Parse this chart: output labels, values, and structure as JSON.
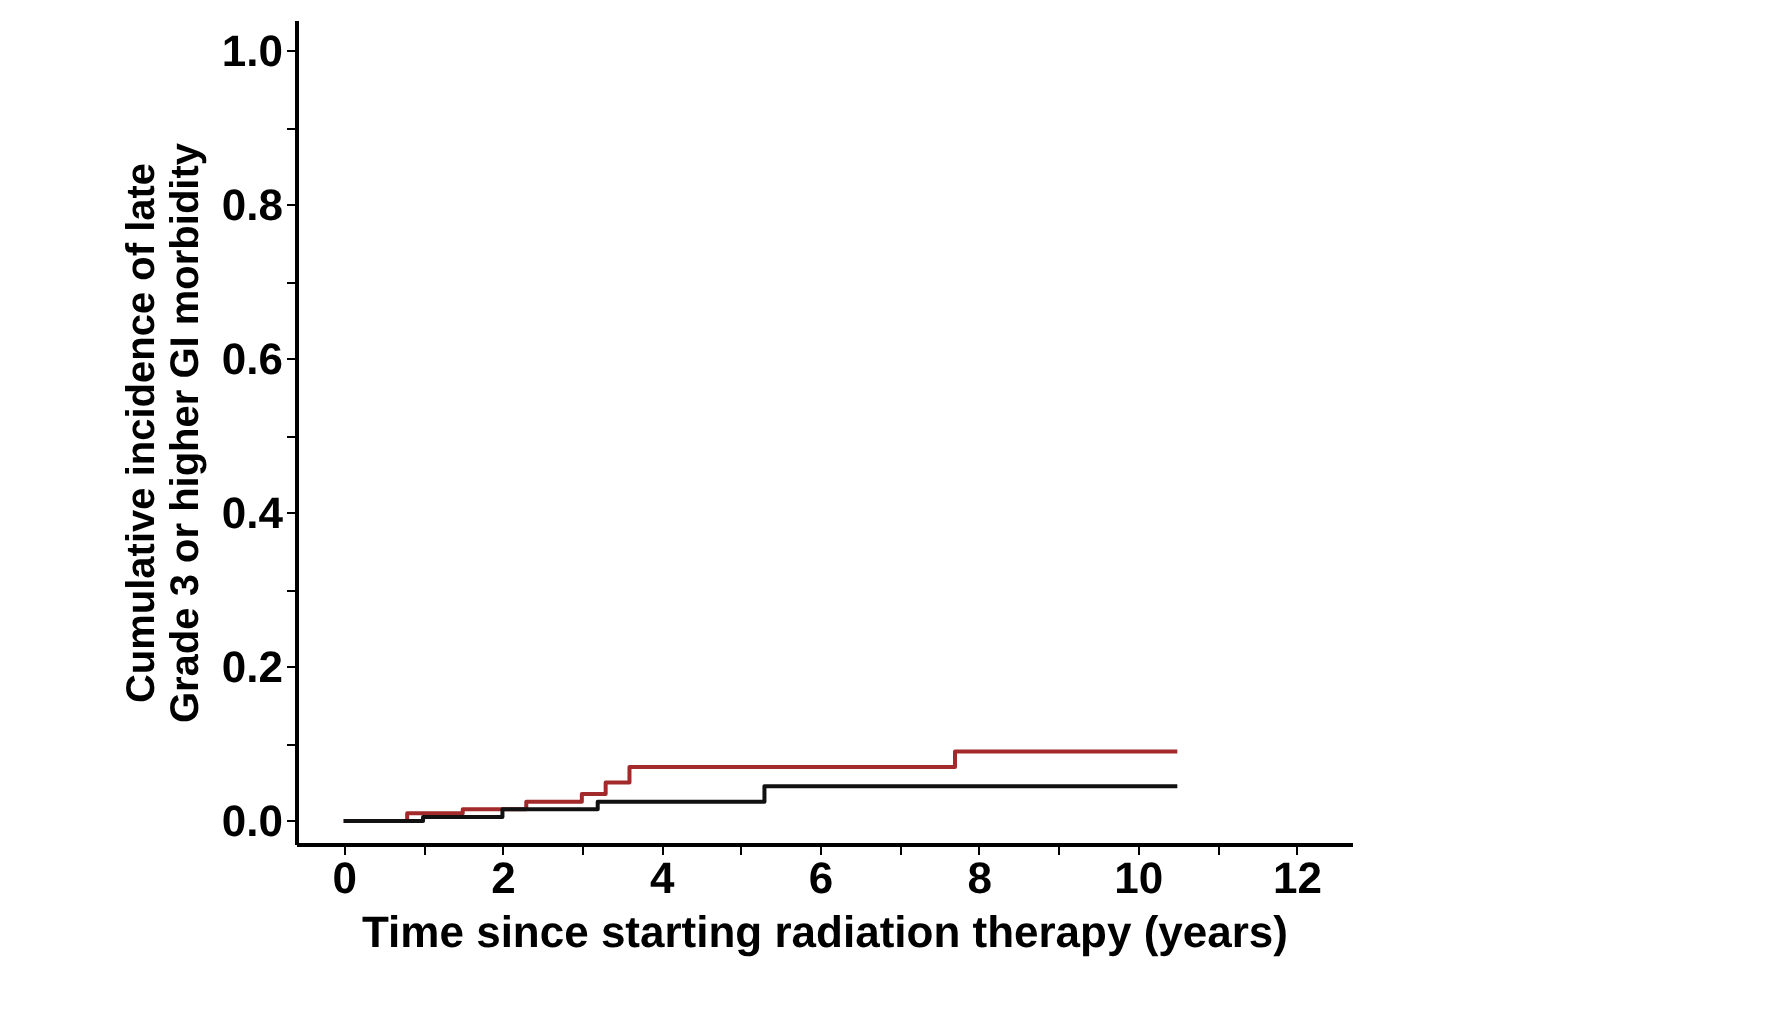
{
  "chart_data": {
    "type": "step",
    "xlabel": "Time since starting radiation therapy (years)",
    "ylabel": "Cumulative incidence of late\nGrade 3 or higher GI morbidity",
    "xlim": [
      -0.6,
      12.7
    ],
    "ylim": [
      -0.03,
      1.04
    ],
    "xticks": [
      0,
      {
        "value": 1,
        "label": null
      },
      2,
      {
        "value": 3,
        "label": null
      },
      4,
      {
        "value": 5,
        "label": null
      },
      6,
      {
        "value": 7,
        "label": null
      },
      8,
      {
        "value": 9,
        "label": null
      },
      10,
      {
        "value": 11,
        "label": null
      },
      12
    ],
    "yticks": [
      {
        "value": 0,
        "label": "0.0"
      },
      {
        "value": 0.1,
        "label": null
      },
      0.2,
      {
        "value": 0.3,
        "label": null
      },
      0.4,
      {
        "value": 0.5,
        "label": null
      },
      0.6,
      {
        "value": 0.7,
        "label": null
      },
      0.8,
      {
        "value": 0.9,
        "label": null
      },
      {
        "value": 1,
        "label": "1.0"
      }
    ],
    "grid": false,
    "legend": false,
    "series": [
      {
        "color": "#a32a2a",
        "x": [
          0,
          0.8,
          1.5,
          2.3,
          3.0,
          3.3,
          3.6,
          7.7,
          10.5
        ],
        "values": [
          0,
          0.01,
          0.015,
          0.025,
          0.035,
          0.05,
          0.07,
          0.09,
          0.09
        ]
      },
      {
        "color": "#111111",
        "x": [
          0,
          1.0,
          2.0,
          3.2,
          5.3,
          10.5
        ],
        "values": [
          0,
          0.005,
          0.015,
          0.025,
          0.045,
          0.045
        ]
      }
    ]
  }
}
